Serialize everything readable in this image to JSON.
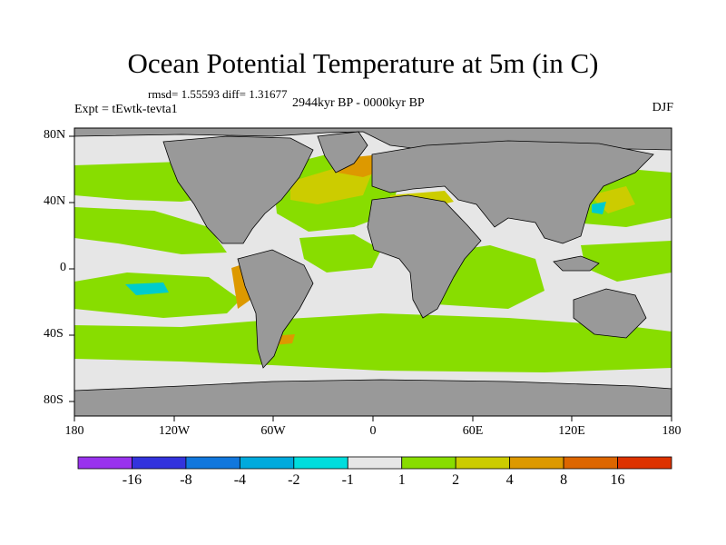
{
  "title": "Ocean Potential Temperature at 5m (in C)",
  "stats": "rmsd= 1.55593 diff= 1.31677",
  "experiment": "Expt = tEwtk-tevta1",
  "period": "2944kyr BP - 0000kyr BP",
  "season": "DJF",
  "lat_labels": [
    "80N",
    "40N",
    "0",
    "40S",
    "80S"
  ],
  "lon_labels": [
    "180",
    "120W",
    "60W",
    "0",
    "60E",
    "120E",
    "180"
  ],
  "colors": {
    "land": "#999999",
    "background_ocean": "#e6e6e6",
    "warm_2": "#88dd00",
    "warm_4": "#cccc00",
    "warm_8": "#dd9900",
    "cool_2": "#00cccc"
  },
  "colorbar": {
    "colors": [
      "#9933ee",
      "#3333dd",
      "#1177dd",
      "#00aadd",
      "#00dddd",
      "#e6e6e6",
      "#88dd00",
      "#cccc00",
      "#dd9900",
      "#dd6600",
      "#dd3300"
    ],
    "labels": [
      "-16",
      "-8",
      "-4",
      "-2",
      "-1",
      "1",
      "2",
      "4",
      "8",
      "16"
    ]
  }
}
